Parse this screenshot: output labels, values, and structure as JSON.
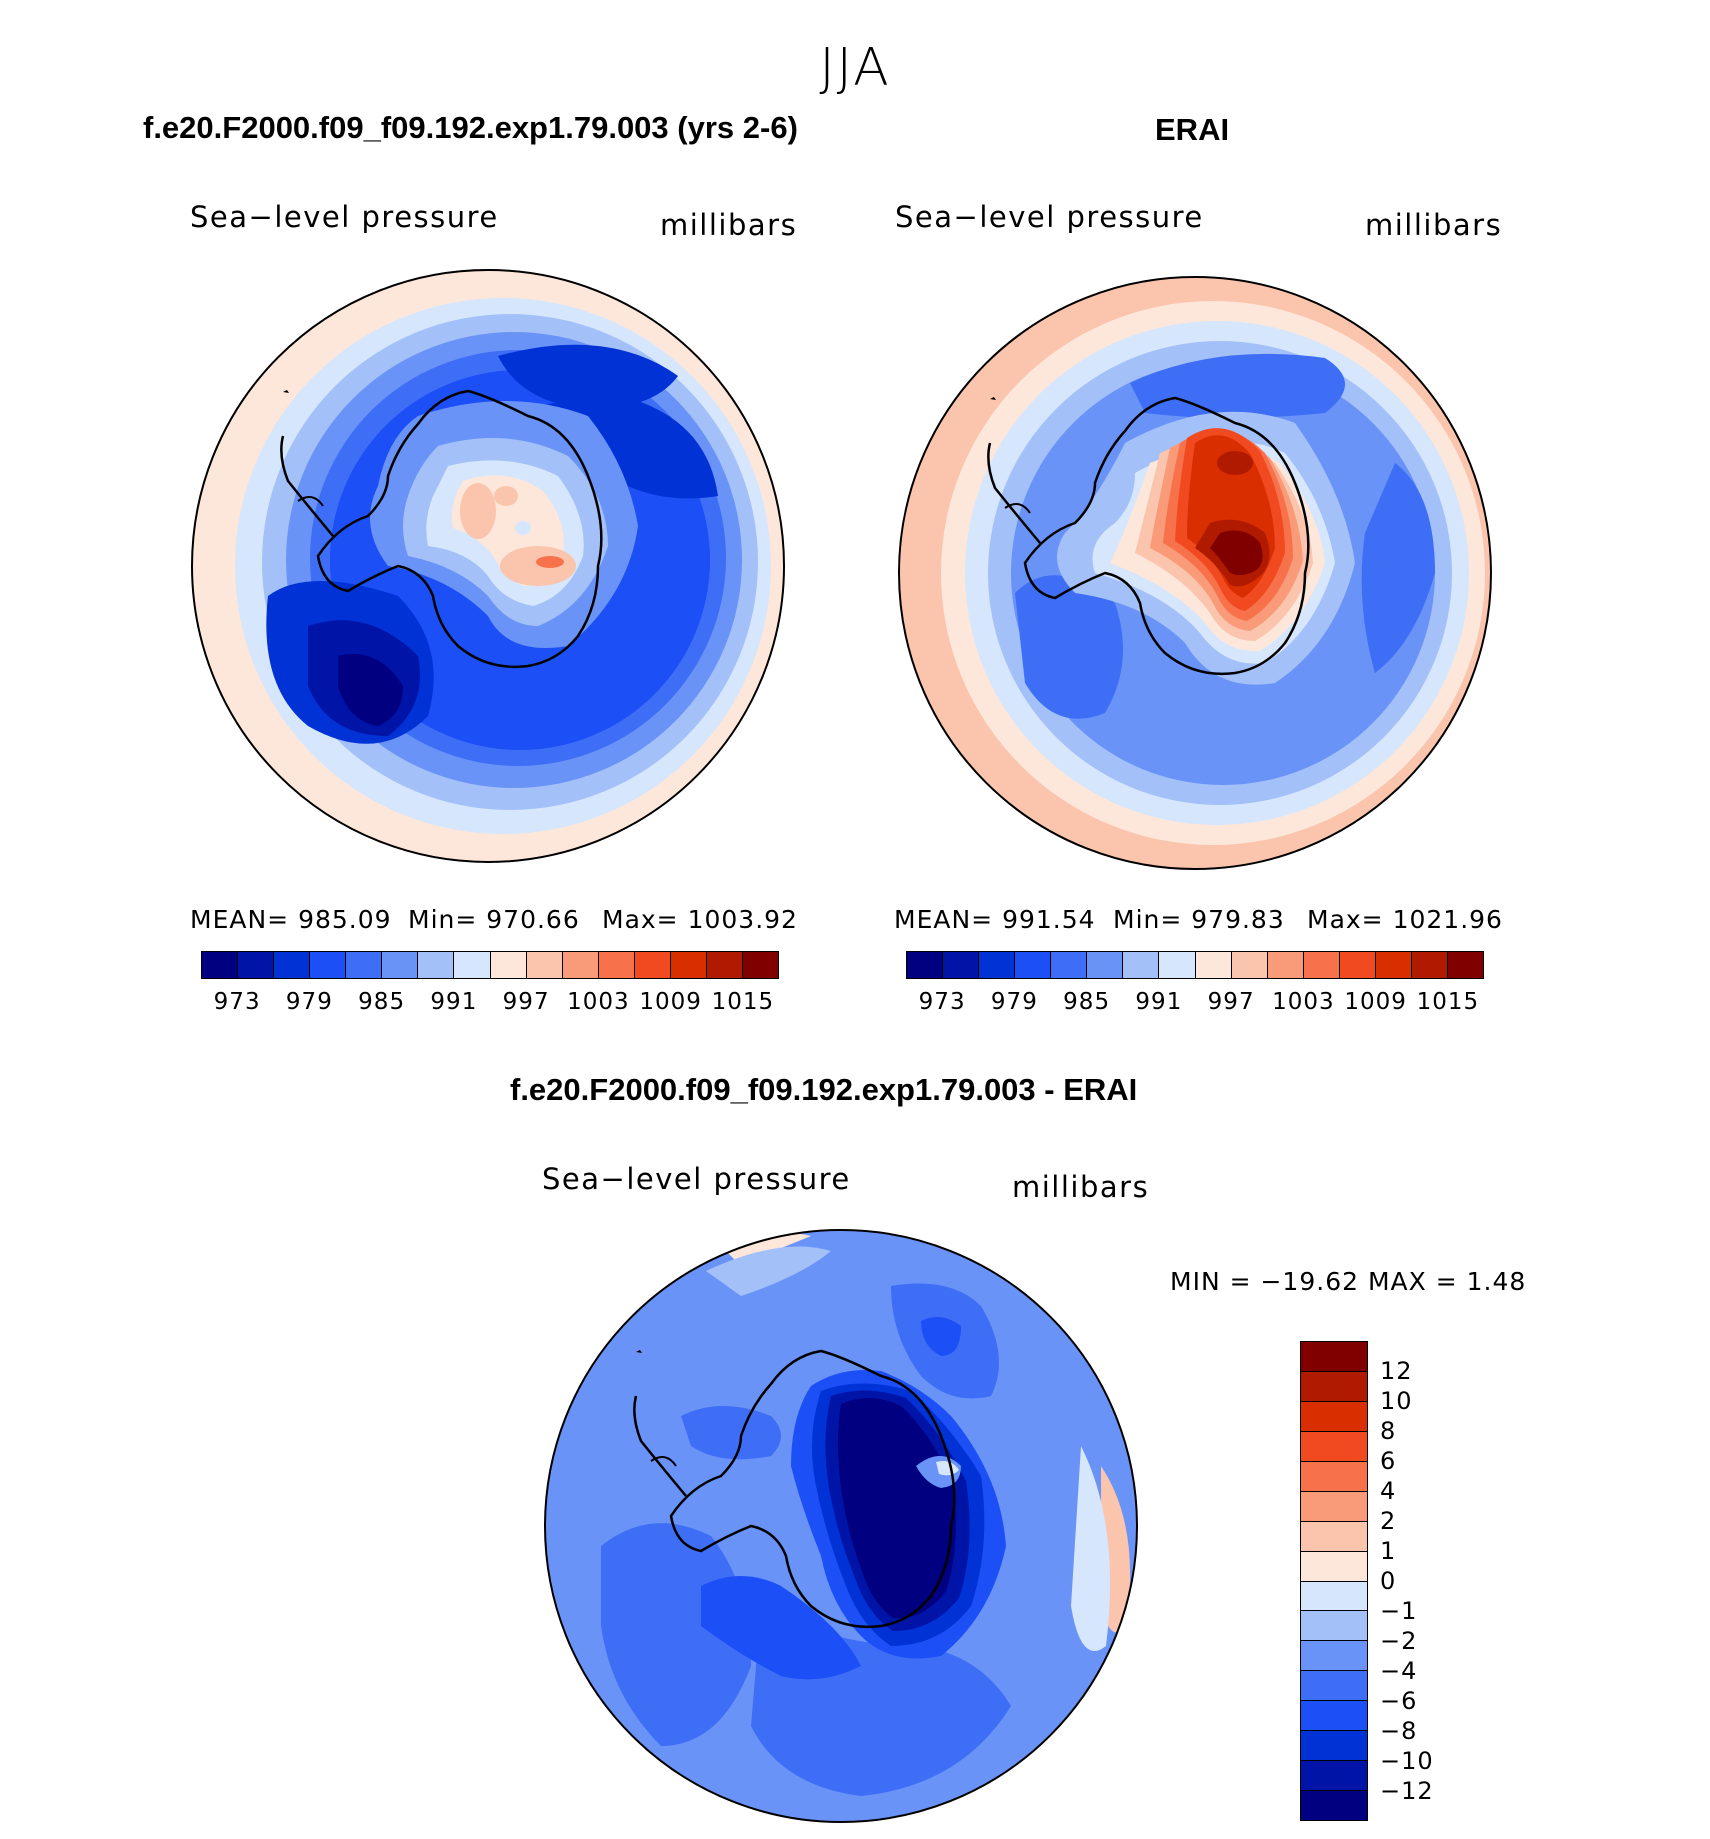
{
  "figure": {
    "season": "JJA",
    "units_label": "millibars",
    "variable_label": "Sea−level pressure"
  },
  "chart_data": [
    {
      "type": "heatmap",
      "projection": "south-polar-stereographic",
      "title": "f.e20.F2000.f09_f09.192.exp1.79.003 (yrs 2-6)",
      "left_label": "Sea−level pressure",
      "right_label": "millibars",
      "stats_text": {
        "mean": "MEAN=  985.09",
        "min": "Min=  970.66",
        "max": "Max=  1003.92"
      },
      "mean": 985.09,
      "min": 970.66,
      "max": 1003.92,
      "colorbar": {
        "tick_labels": [
          "973",
          "979",
          "985",
          "991",
          "997",
          "1003",
          "1009",
          "1015"
        ],
        "colors": [
          "#000080",
          "#0015a8",
          "#0032d6",
          "#1c4ff5",
          "#3f6ef6",
          "#6a93f7",
          "#a4c0f9",
          "#d6e6fc",
          "#fde7da",
          "#fbc4ad",
          "#f99a79",
          "#f7724b",
          "#f24a20",
          "#d92f00",
          "#b01b00",
          "#800000"
        ]
      }
    },
    {
      "type": "heatmap",
      "projection": "south-polar-stereographic",
      "title": "ERAI",
      "left_label": "Sea−level pressure",
      "right_label": "millibars",
      "stats_text": {
        "mean": "MEAN=  991.54",
        "min": "Min=  979.83",
        "max": "Max=  1021.96"
      },
      "mean": 991.54,
      "min": 979.83,
      "max": 1021.96,
      "colorbar": {
        "tick_labels": [
          "973",
          "979",
          "985",
          "991",
          "997",
          "1003",
          "1009",
          "1015"
        ],
        "colors": [
          "#000080",
          "#0015a8",
          "#0032d6",
          "#1c4ff5",
          "#3f6ef6",
          "#6a93f7",
          "#a4c0f9",
          "#d6e6fc",
          "#fde7da",
          "#fbc4ad",
          "#f99a79",
          "#f7724b",
          "#f24a20",
          "#d92f00",
          "#b01b00",
          "#800000"
        ]
      }
    },
    {
      "type": "heatmap",
      "projection": "south-polar-stereographic",
      "title": "f.e20.F2000.f09_f09.192.exp1.79.003 - ERAI",
      "left_label": "Sea−level pressure",
      "right_label": "millibars",
      "stats_text": "MIN  =  −19.62  MAX  =      1.48",
      "min": -19.62,
      "max": 1.48,
      "colorbar": {
        "orientation": "vertical",
        "tick_labels": [
          "−12",
          "−10",
          "−8",
          "−6",
          "−4",
          "−2",
          "−1",
          "0",
          "1",
          "2",
          "4",
          "6",
          "8",
          "10",
          "12"
        ],
        "colors": [
          "#000080",
          "#0015a8",
          "#0032d6",
          "#1c4ff5",
          "#3f6ef6",
          "#6a93f7",
          "#a4c0f9",
          "#d6e6fc",
          "#fde7da",
          "#fbc4ad",
          "#f99a79",
          "#f7724b",
          "#f24a20",
          "#d92f00",
          "#b01b00",
          "#800000"
        ]
      }
    }
  ]
}
